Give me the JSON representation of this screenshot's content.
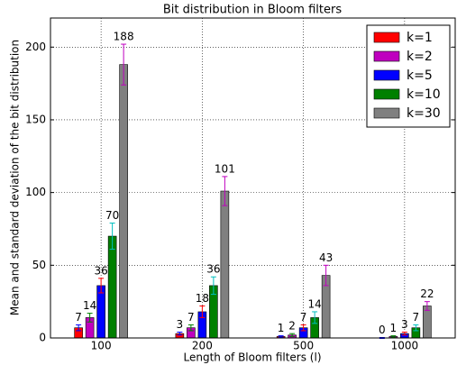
{
  "chart_data": {
    "type": "bar",
    "title": "Bit distribution in Bloom filters",
    "x_label": "Length of Bloom filters (l)",
    "y_label": "Mean and standard deviation of the bit distribution",
    "categories": [
      "100",
      "200",
      "500",
      "1000"
    ],
    "series": [
      {
        "name": "k=1",
        "color": "#ff0000",
        "error_color": "#0000ff",
        "values": [
          7,
          3,
          1,
          0
        ],
        "errors": [
          2,
          1,
          0.5,
          0.3
        ]
      },
      {
        "name": "k=2",
        "color": "#bf00bf",
        "error_color": "#008000",
        "values": [
          14,
          7,
          2,
          1
        ],
        "errors": [
          3,
          2,
          1,
          0.5
        ]
      },
      {
        "name": "k=5",
        "color": "#0000ff",
        "error_color": "#ff0000",
        "values": [
          36,
          18,
          7,
          3
        ],
        "errors": [
          5,
          4,
          2,
          1
        ]
      },
      {
        "name": "k=10",
        "color": "#008000",
        "error_color": "#00bfbf",
        "values": [
          70,
          36,
          14,
          7
        ],
        "errors": [
          9,
          6,
          4,
          2
        ]
      },
      {
        "name": "k=30",
        "color": "#808080",
        "error_color": "#bf00bf",
        "values": [
          188,
          101,
          43,
          22
        ],
        "errors": [
          14,
          10,
          7,
          3
        ]
      }
    ],
    "ylim": [
      0,
      220
    ],
    "yticks": [
      0,
      50,
      100,
      150,
      200
    ],
    "grid": true,
    "legend": "upper right"
  }
}
